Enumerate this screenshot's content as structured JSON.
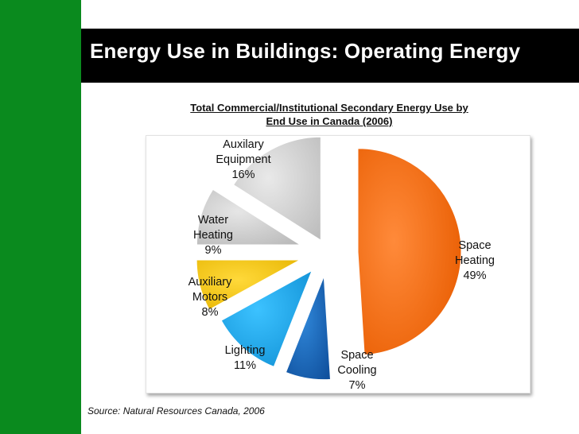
{
  "slide": {
    "title": "Energy Use in Buildings: Operating Energy",
    "source": "Source: Natural Resources Canada, 2006"
  },
  "chart_data": {
    "type": "pie",
    "title_line1": "Total Commercial/Institutional Secondary Energy Use by",
    "title_line2": "End Use in Canada (2006)",
    "slices": [
      {
        "key": "space_heating",
        "lines": [
          "Space",
          "Heating"
        ],
        "value": 49,
        "pct_label": "49%",
        "color": "#f26b10"
      },
      {
        "key": "space_cooling",
        "lines": [
          "Space",
          "Cooling"
        ],
        "value": 7,
        "pct_label": "7%",
        "color": "#1565c0"
      },
      {
        "key": "lighting",
        "lines": [
          "Lighting"
        ],
        "value": 11,
        "pct_label": "11%",
        "color": "#15a3ec"
      },
      {
        "key": "auxiliary_motors",
        "lines": [
          "Auxiliary",
          "Motors"
        ],
        "value": 8,
        "pct_label": "8%",
        "color": "#f8c600"
      },
      {
        "key": "water_heating",
        "lines": [
          "Water",
          "Heating"
        ],
        "value": 9,
        "pct_label": "9%",
        "color": "#c8c8c8"
      },
      {
        "key": "auxilary_equipment",
        "lines": [
          "Auxilary",
          "Equipment"
        ],
        "value": 16,
        "pct_label": "16%",
        "color": "#cfcfcf"
      }
    ]
  }
}
